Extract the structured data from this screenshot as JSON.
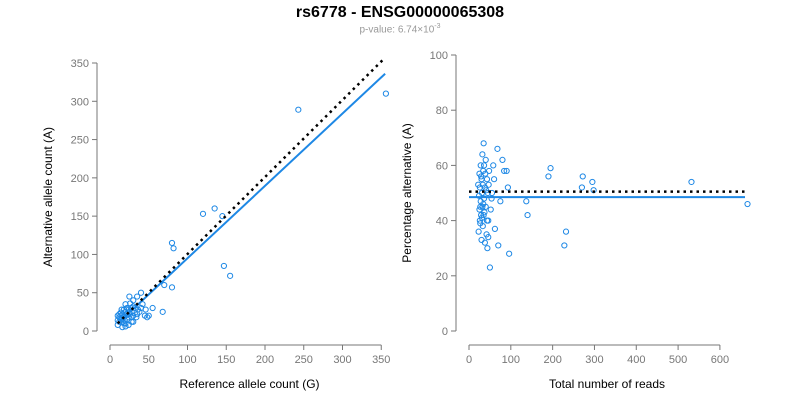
{
  "header": {
    "title": "rs6778 - ENSG00000065308",
    "pvalue_prefix": "p-value: 6.74×10",
    "pvalue_exp": "-3"
  },
  "colors": {
    "points": "#1e88e5",
    "fit": "#1e88e5",
    "reference": "#000000",
    "axis": "#777777"
  },
  "chart_data": [
    {
      "type": "scatter",
      "xlabel": "Reference allele count (G)",
      "ylabel": "Alternative allele count (A)",
      "xlim": [
        0,
        360
      ],
      "ylim": [
        0,
        350
      ],
      "xticks": [
        0,
        50,
        100,
        150,
        200,
        250,
        300,
        350
      ],
      "yticks": [
        0,
        50,
        100,
        150,
        200,
        250,
        300,
        350
      ],
      "grid": false,
      "fit_line": {
        "style": "solid",
        "x": [
          10,
          355
        ],
        "y": [
          10,
          336
        ]
      },
      "reference_line": {
        "style": "dotted",
        "x": [
          10,
          355
        ],
        "y": [
          10,
          357
        ]
      },
      "points": [
        [
          356,
          310
        ],
        [
          243,
          289
        ],
        [
          155,
          72
        ],
        [
          147,
          85
        ],
        [
          135,
          160
        ],
        [
          120,
          153
        ],
        [
          145,
          150
        ],
        [
          80,
          115
        ],
        [
          82,
          108
        ],
        [
          80,
          57
        ],
        [
          70,
          60
        ],
        [
          68,
          25
        ],
        [
          45,
          20
        ],
        [
          40,
          50
        ],
        [
          38,
          25
        ],
        [
          35,
          45
        ],
        [
          30,
          40
        ],
        [
          28,
          12
        ],
        [
          26,
          36
        ],
        [
          25,
          45
        ],
        [
          22,
          30
        ],
        [
          22,
          15
        ],
        [
          20,
          25
        ],
        [
          20,
          20
        ],
        [
          18,
          28
        ],
        [
          18,
          10
        ],
        [
          15,
          20
        ],
        [
          14,
          15
        ],
        [
          12,
          12
        ],
        [
          12,
          18
        ],
        [
          10,
          8
        ],
        [
          10,
          14
        ],
        [
          16,
          22
        ],
        [
          24,
          18
        ],
        [
          26,
          22
        ],
        [
          28,
          25
        ],
        [
          30,
          20
        ],
        [
          32,
          30
        ],
        [
          34,
          18
        ],
        [
          36,
          28
        ],
        [
          14,
          24
        ],
        [
          16,
          12
        ],
        [
          20,
          10
        ],
        [
          24,
          28
        ],
        [
          30,
          32
        ],
        [
          42,
          35
        ],
        [
          50,
          20
        ],
        [
          55,
          30
        ],
        [
          18,
          18
        ],
        [
          22,
          22
        ],
        [
          28,
          18
        ],
        [
          12,
          22
        ],
        [
          15,
          28
        ],
        [
          20,
          35
        ],
        [
          25,
          25
        ],
        [
          40,
          30
        ],
        [
          46,
          28
        ],
        [
          48,
          18
        ],
        [
          20,
          6
        ],
        [
          30,
          12
        ],
        [
          16,
          5
        ],
        [
          24,
          8
        ],
        [
          10,
          20
        ],
        [
          35,
          22
        ],
        [
          27,
          30
        ],
        [
          19,
          14
        ]
      ]
    },
    {
      "type": "scatter",
      "xlabel": "Total number of reads",
      "ylabel": "Percentage alternative (A)",
      "xlim": [
        0,
        660
      ],
      "ylim": [
        0,
        100
      ],
      "xticks": [
        0,
        100,
        200,
        300,
        400,
        500,
        600
      ],
      "yticks": [
        0,
        20,
        40,
        60,
        80,
        100
      ],
      "grid": false,
      "fit_line": {
        "style": "solid",
        "y": 48.5
      },
      "reference_line": {
        "style": "dotted",
        "y": 50.5
      },
      "points": [
        [
          666,
          46
        ],
        [
          532,
          54
        ],
        [
          295,
          54
        ],
        [
          298,
          51
        ],
        [
          272,
          56
        ],
        [
          270,
          52
        ],
        [
          232,
          36
        ],
        [
          228,
          31
        ],
        [
          195,
          59
        ],
        [
          190,
          56
        ],
        [
          140,
          42
        ],
        [
          137,
          47
        ],
        [
          96,
          28
        ],
        [
          93,
          52
        ],
        [
          90,
          58
        ],
        [
          84,
          58
        ],
        [
          80,
          62
        ],
        [
          75,
          47
        ],
        [
          70,
          31
        ],
        [
          68,
          66
        ],
        [
          62,
          37
        ],
        [
          60,
          55
        ],
        [
          58,
          60
        ],
        [
          55,
          50
        ],
        [
          52,
          44
        ],
        [
          50,
          23
        ],
        [
          48,
          58
        ],
        [
          46,
          40
        ],
        [
          45,
          50
        ],
        [
          43,
          55
        ],
        [
          42,
          35
        ],
        [
          40,
          62
        ],
        [
          40,
          45
        ],
        [
          38,
          52
        ],
        [
          36,
          48
        ],
        [
          35,
          68
        ],
        [
          35,
          42
        ],
        [
          34,
          58
        ],
        [
          33,
          38
        ],
        [
          32,
          64
        ],
        [
          32,
          45
        ],
        [
          31,
          50
        ],
        [
          30,
          33
        ],
        [
          30,
          55
        ],
        [
          29,
          42
        ],
        [
          28,
          60
        ],
        [
          28,
          47
        ],
        [
          27,
          39
        ],
        [
          26,
          52
        ],
        [
          25,
          44
        ],
        [
          25,
          57
        ],
        [
          24,
          49
        ],
        [
          23,
          36
        ],
        [
          22,
          53
        ],
        [
          44,
          30
        ],
        [
          46,
          34
        ],
        [
          38,
          32
        ],
        [
          36,
          60
        ],
        [
          33,
          53
        ],
        [
          31,
          41
        ],
        [
          29,
          56
        ],
        [
          27,
          45
        ],
        [
          37,
          43
        ],
        [
          41,
          51
        ],
        [
          34,
          46
        ],
        [
          39,
          57
        ],
        [
          43,
          40
        ],
        [
          47,
          53
        ],
        [
          54,
          48
        ],
        [
          26,
          40
        ]
      ]
    }
  ]
}
